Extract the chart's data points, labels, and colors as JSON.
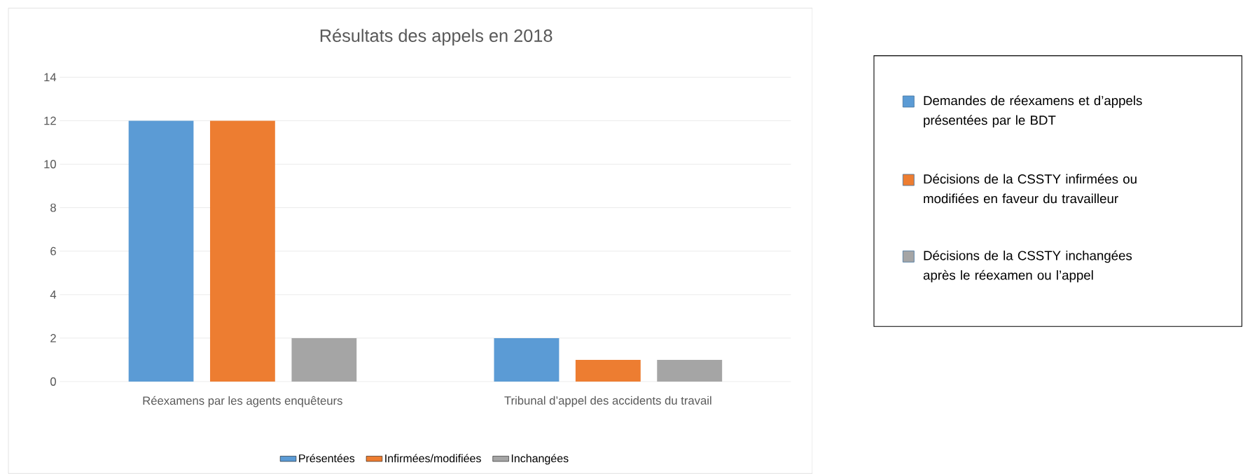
{
  "chart_data": {
    "type": "bar",
    "title": "Résultats des appels en 2018",
    "categories": [
      "Réexamens par les agents enquêteurs",
      "Tribunal d’appel des accidents du travail"
    ],
    "series": [
      {
        "name": "Présentées",
        "color": "#5b9bd5",
        "values": [
          12,
          2
        ]
      },
      {
        "name": "Infirmées/modifiées",
        "color": "#ed7d31",
        "values": [
          12,
          1
        ]
      },
      {
        "name": "Inchangées",
        "color": "#a5a5a5",
        "values": [
          2,
          1
        ]
      }
    ],
    "ylim": [
      0,
      14
    ],
    "yticks": [
      0,
      2,
      4,
      6,
      8,
      10,
      12,
      14
    ],
    "grid": "y",
    "legend": "bottom",
    "annotations": [
      "Demandes de réexamens et d’appels présentées par le BDT",
      "Décisions de la CSSTY infirmées ou modifiées en faveur du travailleur",
      "Décisions de la CSSTY inchangées après le réexamen ou l’appel"
    ]
  }
}
